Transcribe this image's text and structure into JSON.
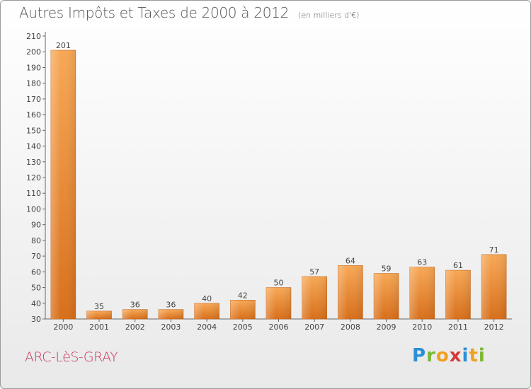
{
  "title": "Autres Impôts et Taxes de 2000 à 2012",
  "unit": "(en milliers d'€)",
  "commune": "ARC-LèS-GRAY",
  "logo": {
    "letters": [
      "P",
      "r",
      "o",
      "x",
      "i",
      "t",
      "i"
    ],
    "colors": [
      "#2a8fd6",
      "#7cb833",
      "#f0a020",
      "#d63a3a",
      "#2a8fd6",
      "#f0a020",
      "#7cb833"
    ]
  },
  "colors": {
    "bar_light": "#f7a856",
    "bar_dark": "#d86f1a",
    "axis": "#666666",
    "grid": "#dddddd",
    "text": "#444444"
  },
  "chart_data": {
    "type": "bar",
    "categories": [
      "2000",
      "2001",
      "2002",
      "2003",
      "2004",
      "2005",
      "2006",
      "2007",
      "2008",
      "2009",
      "2010",
      "2011",
      "2012"
    ],
    "values": [
      201,
      35,
      36,
      36,
      40,
      42,
      50,
      57,
      64,
      59,
      63,
      61,
      71
    ],
    "value_labels": [
      "201",
      "35",
      "36",
      "36",
      "40",
      "42",
      "50",
      "57",
      "64",
      "59",
      "63",
      "61",
      "71"
    ],
    "yticks": [
      "30",
      "40",
      "50",
      "60",
      "70",
      "80",
      "90",
      "100",
      "110",
      "120",
      "130",
      "140",
      "150",
      "160",
      "170",
      "180",
      "190",
      "200",
      "210"
    ],
    "ylim": [
      30,
      210
    ],
    "ystep": 10,
    "grid": false
  }
}
